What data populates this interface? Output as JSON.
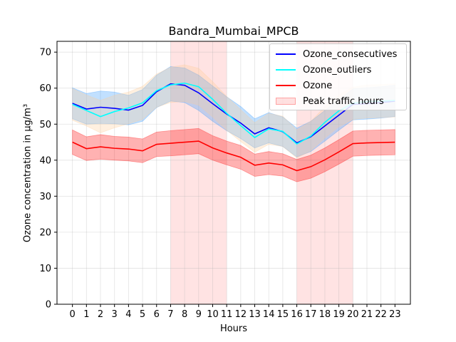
{
  "chart_data": {
    "type": "line",
    "title": "Bandra_Mumbai_MPCB",
    "xlabel": "Hours",
    "ylabel": "Ozone concentration in µg/m³",
    "x": [
      0,
      1,
      2,
      3,
      4,
      5,
      6,
      7,
      8,
      9,
      10,
      11,
      12,
      13,
      14,
      15,
      16,
      17,
      18,
      19,
      20,
      21,
      22,
      23
    ],
    "xlim": [
      -1.1,
      24.1
    ],
    "ylim": [
      0,
      73
    ],
    "yticks": [
      0,
      10,
      20,
      30,
      40,
      50,
      60,
      70
    ],
    "grid": true,
    "legend_position": "upper right",
    "shaded_regions": [
      {
        "name": "Peak traffic hours",
        "from": 7,
        "to": 11,
        "color": "#ff9999"
      },
      {
        "from": 16,
        "to": 20,
        "color": "#ff9999"
      }
    ],
    "series": [
      {
        "name": "Ozone_consecutives",
        "color": "#0000ff",
        "band_color": "#3399ff",
        "values": [
          55.8,
          54.2,
          54.7,
          54.4,
          53.9,
          55.2,
          59.0,
          61.2,
          60.8,
          58.7,
          55.7,
          52.8,
          50.3,
          47.3,
          49.0,
          47.9,
          44.8,
          46.5,
          49.5,
          52.5,
          55.5,
          55.7,
          56.0,
          56.4
        ],
        "lower": [
          51.5,
          50.0,
          50.2,
          50.1,
          49.8,
          50.8,
          54.6,
          56.4,
          56.0,
          53.8,
          50.8,
          48.2,
          46.0,
          43.4,
          44.8,
          43.8,
          40.9,
          42.4,
          45.3,
          48.3,
          51.2,
          51.4,
          51.7,
          52.1
        ],
        "upper": [
          60.1,
          58.5,
          59.2,
          58.9,
          58.0,
          59.6,
          63.6,
          66.0,
          65.6,
          63.6,
          60.6,
          57.6,
          54.9,
          51.5,
          53.2,
          52.0,
          48.9,
          50.8,
          53.8,
          56.8,
          59.8,
          60.1,
          60.4,
          60.8
        ]
      },
      {
        "name": "Ozone_outliers",
        "color": "#00ffff",
        "band_color": "#ffcc99",
        "values": [
          55.5,
          53.8,
          52.1,
          53.5,
          54.5,
          55.9,
          59.3,
          60.9,
          61.4,
          60.4,
          56.9,
          53.0,
          49.6,
          46.3,
          48.7,
          48.0,
          44.5,
          46.7,
          50.5,
          53.7,
          55.8,
          56.3,
          56.4,
          56.6
        ],
        "lower": [
          51.1,
          49.5,
          47.6,
          49.0,
          50.1,
          51.3,
          54.7,
          56.0,
          56.3,
          55.3,
          52.0,
          48.3,
          45.2,
          42.2,
          44.4,
          43.8,
          40.6,
          42.6,
          46.2,
          49.3,
          51.3,
          51.7,
          51.8,
          52.0
        ],
        "upper": [
          59.9,
          58.1,
          56.6,
          58.0,
          58.9,
          60.5,
          63.9,
          65.8,
          66.5,
          65.5,
          61.8,
          57.7,
          54.0,
          50.4,
          53.0,
          52.2,
          48.4,
          50.8,
          54.8,
          58.1,
          60.3,
          60.9,
          61.0,
          61.2
        ]
      },
      {
        "name": "Ozone",
        "color": "#ff0000",
        "band_color": "#ff0000",
        "values": [
          45.0,
          43.2,
          43.7,
          43.3,
          43.1,
          42.6,
          44.4,
          44.7,
          45.0,
          45.3,
          43.4,
          42.0,
          40.8,
          38.6,
          39.2,
          38.7,
          37.1,
          38.2,
          40.1,
          42.3,
          44.6,
          44.8,
          44.9,
          45.0
        ],
        "lower": [
          41.6,
          39.9,
          40.3,
          40.0,
          39.8,
          39.3,
          41.0,
          41.2,
          41.5,
          41.8,
          40.0,
          38.7,
          37.5,
          35.5,
          36.0,
          35.6,
          34.0,
          35.0,
          36.8,
          38.9,
          41.1,
          41.3,
          41.4,
          41.5
        ],
        "upper": [
          48.4,
          46.5,
          47.1,
          46.6,
          46.4,
          45.9,
          47.8,
          48.2,
          48.5,
          48.8,
          46.8,
          45.3,
          44.1,
          41.7,
          42.4,
          41.8,
          40.2,
          41.4,
          43.4,
          45.7,
          48.1,
          48.3,
          48.4,
          48.5
        ]
      }
    ]
  },
  "legend": {
    "items": [
      {
        "label": "Ozone_consecutives",
        "color": "#0000ff"
      },
      {
        "label": "Ozone_outliers",
        "color": "#00ffff"
      },
      {
        "label": "Ozone",
        "color": "#ff0000"
      },
      {
        "label": "Peak traffic hours",
        "color": "#ff9999"
      }
    ]
  }
}
